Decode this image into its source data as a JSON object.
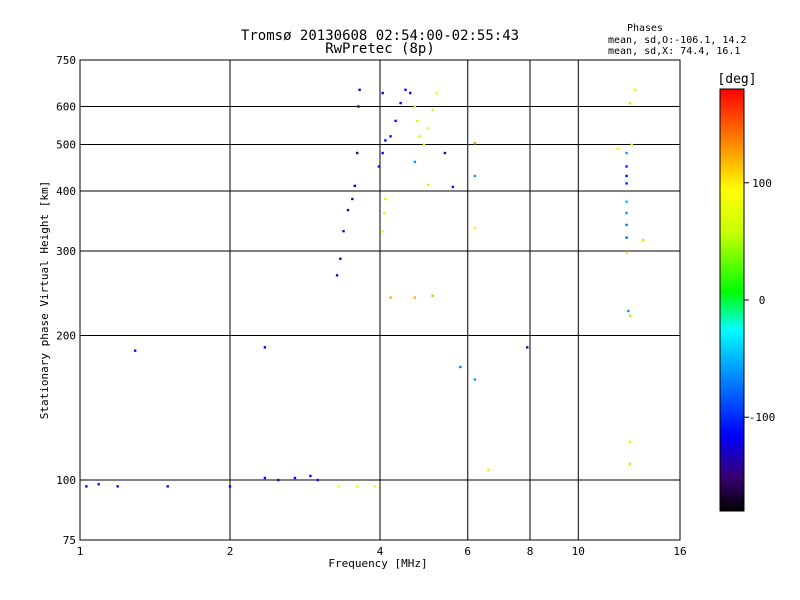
{
  "chart_data": {
    "type": "scatter",
    "title": "Tromsø 20130608 02:54:00-02:55:43",
    "subtitle": "RwPretec (8p)",
    "xlabel": "Frequency [MHz]",
    "ylabel": "Stationary phase Virtual Height [km]",
    "x_scale": "log",
    "y_scale": "log",
    "xlim": [
      1,
      16
    ],
    "ylim": [
      75,
      750
    ],
    "x_ticks": [
      1,
      2,
      4,
      6,
      8,
      10,
      16
    ],
    "x_tick_labels": [
      "1",
      "2",
      "4",
      "6",
      "8",
      "10",
      "16"
    ],
    "y_ticks": [
      75,
      100,
      200,
      300,
      400,
      500,
      600,
      750
    ],
    "y_tick_labels": [
      "75",
      "100",
      "200",
      "300",
      "400",
      "500",
      "600",
      "750"
    ],
    "grid": true,
    "phase_box": {
      "heading": "Phases",
      "line_o": "mean, sd,O:-106.1, 14.2",
      "line_x": "mean, sd,X: 74.4, 16.1"
    },
    "colorbar": {
      "label": "[deg]",
      "range": [
        -180,
        180
      ],
      "ticks": [
        100,
        0,
        -100
      ],
      "tick_labels": [
        "100",
        "0",
        "-100"
      ]
    },
    "series": [
      {
        "color_by": "phase",
        "points": [
          [
            1.03,
            97,
            -110
          ],
          [
            1.09,
            98,
            -110
          ],
          [
            1.19,
            97,
            -110
          ],
          [
            1.29,
            186,
            -110
          ],
          [
            1.5,
            97,
            -110
          ],
          [
            2.0,
            97,
            -110
          ],
          [
            2.35,
            189,
            -110
          ],
          [
            2.35,
            101,
            -110
          ],
          [
            2.5,
            100,
            -110
          ],
          [
            2.7,
            101,
            -110
          ],
          [
            2.9,
            102,
            -110
          ],
          [
            3.0,
            100,
            -105
          ],
          [
            3.3,
            97,
            80
          ],
          [
            3.6,
            97,
            80
          ],
          [
            3.9,
            97,
            80
          ],
          [
            3.28,
            267,
            -140
          ],
          [
            3.33,
            289,
            -140
          ],
          [
            3.38,
            330,
            -140
          ],
          [
            3.45,
            365,
            -140
          ],
          [
            3.52,
            385,
            -140
          ],
          [
            3.56,
            410,
            -140
          ],
          [
            3.6,
            480,
            -140
          ],
          [
            3.62,
            600,
            -140
          ],
          [
            3.64,
            650,
            -140
          ],
          [
            3.98,
            450,
            -110
          ],
          [
            4.05,
            480,
            -110
          ],
          [
            4.1,
            510,
            -110
          ],
          [
            4.2,
            520,
            -110
          ],
          [
            4.3,
            560,
            -110
          ],
          [
            4.4,
            610,
            -110
          ],
          [
            4.5,
            650,
            -110
          ],
          [
            4.6,
            640,
            -110
          ],
          [
            4.05,
            640,
            -120
          ],
          [
            4.7,
            600,
            70
          ],
          [
            4.75,
            560,
            70
          ],
          [
            4.8,
            520,
            70
          ],
          [
            4.9,
            500,
            70
          ],
          [
            5.0,
            540,
            70
          ],
          [
            5.1,
            590,
            70
          ],
          [
            5.2,
            640,
            80
          ],
          [
            4.05,
            330,
            80
          ],
          [
            4.08,
            360,
            70
          ],
          [
            4.1,
            385,
            70
          ],
          [
            4.7,
            460,
            -60
          ],
          [
            4.2,
            240,
            120
          ],
          [
            4.7,
            240,
            120
          ],
          [
            5.1,
            242,
            120
          ],
          [
            5.0,
            412,
            60
          ],
          [
            5.4,
            480,
            -140
          ],
          [
            5.6,
            408,
            -110
          ],
          [
            5.8,
            172,
            -70
          ],
          [
            6.2,
            503,
            130
          ],
          [
            6.2,
            430,
            -60
          ],
          [
            6.2,
            335,
            100
          ],
          [
            6.2,
            162,
            -60
          ],
          [
            6.6,
            105,
            100
          ],
          [
            7.9,
            189,
            -140
          ],
          [
            12.0,
            490,
            100
          ],
          [
            12.5,
            480,
            -60
          ],
          [
            12.5,
            450,
            -100
          ],
          [
            12.5,
            430,
            -110
          ],
          [
            12.5,
            415,
            -100
          ],
          [
            12.5,
            380,
            -50
          ],
          [
            12.5,
            360,
            -60
          ],
          [
            12.5,
            340,
            -70
          ],
          [
            12.5,
            320,
            -80
          ],
          [
            12.5,
            298,
            110
          ],
          [
            12.6,
            225,
            -60
          ],
          [
            12.7,
            220,
            50
          ],
          [
            12.7,
            120,
            100
          ],
          [
            12.7,
            108,
            50
          ],
          [
            12.7,
            610,
            60
          ],
          [
            13.0,
            650,
            70
          ],
          [
            12.8,
            500,
            80
          ],
          [
            13.5,
            316,
            110
          ]
        ]
      }
    ]
  }
}
